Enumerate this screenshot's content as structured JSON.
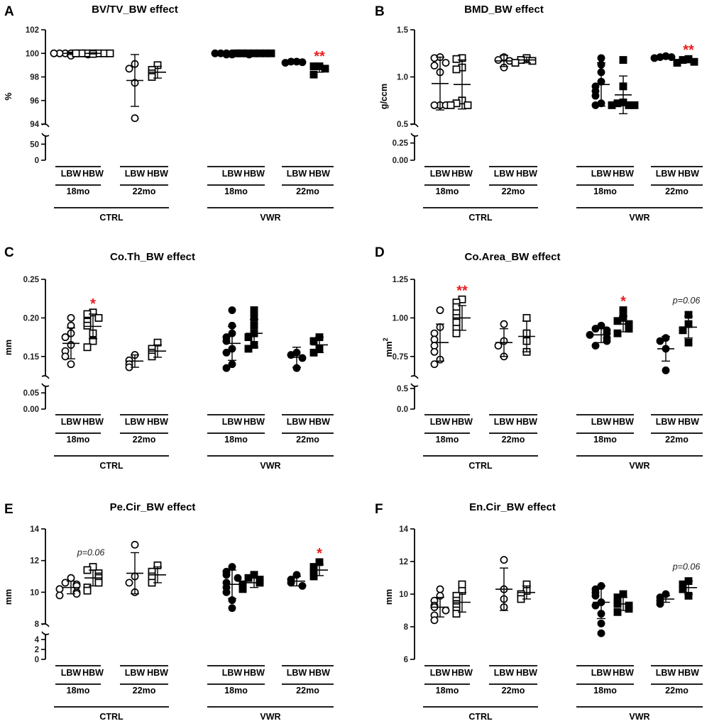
{
  "figure": {
    "group_labels": {
      "weights": [
        "LBW",
        "HBW"
      ],
      "ages": [
        "18mo",
        "22mo"
      ],
      "conditions": [
        "CTRL",
        "VWR"
      ]
    },
    "open_fill_condition": "CTRL",
    "filled_condition": "VWR",
    "marker_color": "#000000",
    "annotation_color": "#ee1c1c"
  },
  "chart_data": [
    {
      "type": "scatter",
      "panel": "A",
      "title": "BV/TV_BW effect",
      "ylabel": "%",
      "ylim": [
        0,
        102
      ],
      "axis_break": true,
      "upper_range": [
        94,
        102
      ],
      "lower_range": [
        0,
        75
      ],
      "upper_ticks": [
        "94",
        "96",
        "98",
        "100",
        "102"
      ],
      "lower_ticks": [
        "0",
        "50"
      ],
      "groups": [
        {
          "condition": "CTRL",
          "age": "18mo",
          "weight": "LBW",
          "mean": 100.0,
          "sd": 0.1,
          "values": [
            100.0,
            99.9,
            100.0,
            100.0,
            100.0,
            99.8,
            100.0,
            100.0
          ]
        },
        {
          "condition": "CTRL",
          "age": "18mo",
          "weight": "HBW",
          "mean": 100.0,
          "sd": 0.05,
          "values": [
            100.0,
            100.0,
            100.0,
            99.95,
            100.0,
            100.0,
            100.0,
            100.0
          ]
        },
        {
          "condition": "CTRL",
          "age": "22mo",
          "weight": "LBW",
          "mean": 97.7,
          "sd": 2.2,
          "values": [
            94.5,
            97.5,
            98.7,
            99.1
          ]
        },
        {
          "condition": "CTRL",
          "age": "22mo",
          "weight": "HBW",
          "mean": 98.4,
          "sd": 0.5,
          "values": [
            98.0,
            98.3,
            98.6,
            99.0
          ]
        },
        {
          "condition": "VWR",
          "age": "18mo",
          "weight": "LBW",
          "mean": 99.95,
          "sd": 0.05,
          "values": [
            100.0,
            99.9,
            100.0,
            100.0,
            99.9,
            100.0,
            100.0,
            100.0,
            99.9
          ]
        },
        {
          "condition": "VWR",
          "age": "18mo",
          "weight": "HBW",
          "mean": 100.0,
          "sd": 0.02,
          "values": [
            100.0,
            100.0,
            100.0,
            100.0,
            100.0,
            100.0,
            100.0
          ]
        },
        {
          "condition": "VWR",
          "age": "22mo",
          "weight": "LBW",
          "mean": 99.25,
          "sd": 0.05,
          "values": [
            99.2,
            99.3,
            99.25,
            99.3
          ]
        },
        {
          "condition": "VWR",
          "age": "22mo",
          "weight": "HBW",
          "mean": 98.7,
          "sd": 0.3,
          "values": [
            98.2,
            98.7,
            98.9,
            98.9
          ]
        }
      ],
      "annotations": [
        {
          "text": "**",
          "condition": "VWR",
          "age": "22mo",
          "weight": "HBW",
          "kind": "sig"
        }
      ]
    },
    {
      "type": "scatter",
      "panel": "B",
      "title": "BMD_BW effect",
      "ylabel": "g/ccm",
      "ylim": [
        0,
        1.5
      ],
      "axis_break": true,
      "upper_range": [
        0.5,
        1.5
      ],
      "lower_range": [
        0,
        0.35
      ],
      "upper_ticks": [
        "0.5",
        "1.0",
        "1.5"
      ],
      "lower_ticks": [
        "0.00",
        "0.25"
      ],
      "groups": [
        {
          "condition": "CTRL",
          "age": "18mo",
          "weight": "LBW",
          "mean": 0.93,
          "sd": 0.28,
          "values": [
            0.7,
            0.7,
            0.7,
            1.05,
            1.12,
            1.15,
            1.2,
            1.21
          ]
        },
        {
          "condition": "CTRL",
          "age": "18mo",
          "weight": "HBW",
          "mean": 0.92,
          "sd": 0.26,
          "values": [
            0.7,
            0.7,
            0.72,
            0.75,
            1.08,
            1.1,
            1.19,
            1.2
          ]
        },
        {
          "condition": "CTRL",
          "age": "22mo",
          "weight": "LBW",
          "mean": 1.17,
          "sd": 0.06,
          "values": [
            1.1,
            1.17,
            1.18,
            1.21
          ]
        },
        {
          "condition": "CTRL",
          "age": "22mo",
          "weight": "HBW",
          "mean": 1.18,
          "sd": 0.03,
          "values": [
            1.15,
            1.17,
            1.18,
            1.2
          ]
        },
        {
          "condition": "VWR",
          "age": "18mo",
          "weight": "LBW",
          "mean": 0.92,
          "sd": 0.23,
          "values": [
            0.7,
            0.72,
            0.8,
            0.9,
            0.95,
            1.05,
            1.13,
            1.2,
            0.85
          ]
        },
        {
          "condition": "VWR",
          "age": "18mo",
          "weight": "HBW",
          "mean": 0.81,
          "sd": 0.2,
          "values": [
            0.7,
            0.7,
            0.7,
            0.72,
            0.73,
            0.9,
            1.18
          ]
        },
        {
          "condition": "VWR",
          "age": "22mo",
          "weight": "LBW",
          "mean": 1.21,
          "sd": 0.01,
          "values": [
            1.2,
            1.21,
            1.21,
            1.22
          ]
        },
        {
          "condition": "VWR",
          "age": "22mo",
          "weight": "HBW",
          "mean": 1.17,
          "sd": 0.02,
          "values": [
            1.15,
            1.16,
            1.18,
            1.19
          ]
        }
      ],
      "annotations": [
        {
          "text": "**",
          "condition": "VWR",
          "age": "22mo",
          "weight": "HBW",
          "kind": "sig"
        }
      ]
    },
    {
      "type": "scatter",
      "panel": "C",
      "title": "Co.Th_BW effect",
      "ylabel": "mm",
      "ylim": [
        0,
        0.25
      ],
      "axis_break": true,
      "upper_range": [
        0.125,
        0.25
      ],
      "lower_range": [
        0,
        0.07
      ],
      "upper_ticks": [
        "0.15",
        "0.20",
        "0.25"
      ],
      "lower_ticks": [
        "0.00",
        "0.05"
      ],
      "groups": [
        {
          "condition": "CTRL",
          "age": "18mo",
          "weight": "LBW",
          "mean": 0.167,
          "sd": 0.02,
          "values": [
            0.14,
            0.15,
            0.157,
            0.165,
            0.175,
            0.18,
            0.19,
            0.2
          ]
        },
        {
          "condition": "CTRL",
          "age": "18mo",
          "weight": "HBW",
          "mean": 0.189,
          "sd": 0.016,
          "values": [
            0.162,
            0.17,
            0.18,
            0.19,
            0.195,
            0.2,
            0.205,
            0.207
          ]
        },
        {
          "condition": "CTRL",
          "age": "22mo",
          "weight": "LBW",
          "mean": 0.144,
          "sd": 0.008,
          "values": [
            0.136,
            0.14,
            0.145,
            0.152
          ]
        },
        {
          "condition": "CTRL",
          "age": "22mo",
          "weight": "HBW",
          "mean": 0.157,
          "sd": 0.008,
          "values": [
            0.15,
            0.155,
            0.16,
            0.168
          ]
        },
        {
          "condition": "VWR",
          "age": "18mo",
          "weight": "LBW",
          "mean": 0.167,
          "sd": 0.022,
          "values": [
            0.135,
            0.14,
            0.155,
            0.16,
            0.17,
            0.175,
            0.18,
            0.19,
            0.21
          ]
        },
        {
          "condition": "VWR",
          "age": "18mo",
          "weight": "HBW",
          "mean": 0.18,
          "sd": 0.018,
          "values": [
            0.16,
            0.165,
            0.175,
            0.18,
            0.19,
            0.2,
            0.21
          ]
        },
        {
          "condition": "VWR",
          "age": "22mo",
          "weight": "LBW",
          "mean": 0.149,
          "sd": 0.013,
          "values": [
            0.135,
            0.148,
            0.152,
            0.155
          ]
        },
        {
          "condition": "VWR",
          "age": "22mo",
          "weight": "HBW",
          "mean": 0.165,
          "sd": 0.01,
          "values": [
            0.155,
            0.16,
            0.17,
            0.175
          ]
        }
      ],
      "annotations": [
        {
          "text": "*",
          "condition": "CTRL",
          "age": "18mo",
          "weight": "HBW",
          "kind": "sig"
        }
      ]
    },
    {
      "type": "scatter",
      "panel": "D",
      "title": "Co.Area_BW effect",
      "ylabel": "mm",
      "ylabel_superscript": "2",
      "ylim": [
        0,
        1.25
      ],
      "axis_break": true,
      "upper_range": [
        0.625,
        1.25
      ],
      "lower_range": [
        0,
        0.55
      ],
      "upper_ticks": [
        "0.75",
        "1.00",
        "1.25"
      ],
      "lower_ticks": [
        "0.0",
        "0.5"
      ],
      "groups": [
        {
          "condition": "CTRL",
          "age": "18mo",
          "weight": "LBW",
          "mean": 0.84,
          "sd": 0.12,
          "values": [
            0.7,
            0.73,
            0.78,
            0.82,
            0.86,
            0.9,
            0.94,
            1.05
          ]
        },
        {
          "condition": "CTRL",
          "age": "18mo",
          "weight": "HBW",
          "mean": 1.0,
          "sd": 0.08,
          "values": [
            0.9,
            0.93,
            0.97,
            1.0,
            1.03,
            1.07,
            1.1,
            1.12
          ]
        },
        {
          "condition": "CTRL",
          "age": "22mo",
          "weight": "LBW",
          "mean": 0.84,
          "sd": 0.09,
          "values": [
            0.75,
            0.82,
            0.85,
            0.96
          ]
        },
        {
          "condition": "CTRL",
          "age": "22mo",
          "weight": "HBW",
          "mean": 0.88,
          "sd": 0.1,
          "values": [
            0.78,
            0.85,
            0.9,
            1.0
          ]
        },
        {
          "condition": "VWR",
          "age": "18mo",
          "weight": "LBW",
          "mean": 0.89,
          "sd": 0.05,
          "values": [
            0.82,
            0.85,
            0.87,
            0.89,
            0.9,
            0.92,
            0.93,
            0.95
          ]
        },
        {
          "condition": "VWR",
          "age": "18mo",
          "weight": "HBW",
          "mean": 0.96,
          "sd": 0.05,
          "values": [
            0.9,
            0.93,
            0.95,
            0.96,
            0.98,
            1.0,
            1.05
          ]
        },
        {
          "condition": "VWR",
          "age": "22mo",
          "weight": "LBW",
          "mean": 0.8,
          "sd": 0.08,
          "values": [
            0.66,
            0.8,
            0.85,
            0.87
          ]
        },
        {
          "condition": "VWR",
          "age": "22mo",
          "weight": "HBW",
          "mean": 0.94,
          "sd": 0.07,
          "values": [
            0.84,
            0.92,
            0.96,
            1.02
          ]
        }
      ],
      "annotations": [
        {
          "text": "**",
          "condition": "CTRL",
          "age": "18mo",
          "weight": "HBW",
          "kind": "sig"
        },
        {
          "text": "*",
          "condition": "VWR",
          "age": "18mo",
          "weight": "HBW",
          "kind": "sig"
        },
        {
          "text": "p=0.06",
          "condition": "VWR",
          "age": "22mo",
          "weight": "HBW",
          "kind": "pvalue"
        }
      ]
    },
    {
      "type": "scatter",
      "panel": "E",
      "title": "Pe.Cir_BW effect",
      "ylabel": "mm",
      "ylim": [
        0,
        14
      ],
      "axis_break": true,
      "upper_range": [
        8,
        14
      ],
      "lower_range": [
        0,
        5
      ],
      "upper_ticks": [
        "8",
        "10",
        "12",
        "14"
      ],
      "lower_ticks": [
        "0",
        "2",
        "4"
      ],
      "groups": [
        {
          "condition": "CTRL",
          "age": "18mo",
          "weight": "LBW",
          "mean": 10.3,
          "sd": 0.4,
          "values": [
            9.8,
            9.9,
            10.0,
            10.2,
            10.4,
            10.5,
            10.6,
            10.9
          ]
        },
        {
          "condition": "CTRL",
          "age": "18mo",
          "weight": "HBW",
          "mean": 10.9,
          "sd": 0.5,
          "values": [
            10.1,
            10.3,
            10.6,
            10.9,
            11.0,
            11.2,
            11.4,
            11.6
          ]
        },
        {
          "condition": "CTRL",
          "age": "22mo",
          "weight": "LBW",
          "mean": 11.2,
          "sd": 1.3,
          "values": [
            10.0,
            10.6,
            11.0,
            13.0
          ]
        },
        {
          "condition": "CTRL",
          "age": "22mo",
          "weight": "HBW",
          "mean": 11.1,
          "sd": 0.5,
          "values": [
            10.6,
            11.0,
            11.3,
            11.7
          ]
        },
        {
          "condition": "VWR",
          "age": "18mo",
          "weight": "LBW",
          "mean": 10.5,
          "sd": 0.9,
          "values": [
            9.0,
            9.5,
            10.0,
            10.3,
            10.6,
            10.9,
            11.1,
            11.3,
            11.6
          ]
        },
        {
          "condition": "VWR",
          "age": "18mo",
          "weight": "HBW",
          "mean": 10.6,
          "sd": 0.3,
          "values": [
            10.2,
            10.4,
            10.5,
            10.6,
            10.8,
            10.9,
            11.1
          ]
        },
        {
          "condition": "VWR",
          "age": "22mo",
          "weight": "LBW",
          "mean": 10.7,
          "sd": 0.3,
          "values": [
            10.4,
            10.6,
            10.8,
            11.1
          ]
        },
        {
          "condition": "VWR",
          "age": "22mo",
          "weight": "HBW",
          "mean": 11.4,
          "sd": 0.35,
          "values": [
            11.0,
            11.3,
            11.6,
            11.9
          ]
        }
      ],
      "annotations": [
        {
          "text": "p=0.06",
          "condition": "CTRL",
          "age": "18mo",
          "weight": "HBW",
          "kind": "pvalue"
        },
        {
          "text": "*",
          "condition": "VWR",
          "age": "22mo",
          "weight": "HBW",
          "kind": "sig"
        }
      ]
    },
    {
      "type": "scatter",
      "panel": "F",
      "title": "En.Cir_BW effect",
      "ylabel": "mm",
      "ylim": [
        6,
        14
      ],
      "axis_break": false,
      "ticks": [
        "6",
        "8",
        "10",
        "12",
        "14"
      ],
      "groups": [
        {
          "condition": "CTRL",
          "age": "18mo",
          "weight": "LBW",
          "mean": 9.2,
          "sd": 0.6,
          "values": [
            8.4,
            8.7,
            9.0,
            9.2,
            9.3,
            9.6,
            9.9,
            10.3
          ]
        },
        {
          "condition": "CTRL",
          "age": "18mo",
          "weight": "HBW",
          "mean": 9.5,
          "sd": 0.6,
          "values": [
            8.8,
            9.0,
            9.2,
            9.4,
            9.6,
            9.9,
            10.2,
            10.6
          ]
        },
        {
          "condition": "CTRL",
          "age": "22mo",
          "weight": "LBW",
          "mean": 10.3,
          "sd": 1.3,
          "values": [
            9.2,
            9.7,
            10.3,
            12.1
          ]
        },
        {
          "condition": "CTRL",
          "age": "22mo",
          "weight": "HBW",
          "mean": 10.1,
          "sd": 0.4,
          "values": [
            9.7,
            10.0,
            10.2,
            10.6
          ]
        },
        {
          "condition": "VWR",
          "age": "18mo",
          "weight": "LBW",
          "mean": 9.5,
          "sd": 1.0,
          "values": [
            7.6,
            8.2,
            8.8,
            9.3,
            9.5,
            9.9,
            10.1,
            10.3,
            10.5
          ]
        },
        {
          "condition": "VWR",
          "age": "18mo",
          "weight": "HBW",
          "mean": 9.4,
          "sd": 0.4,
          "values": [
            8.9,
            9.1,
            9.3,
            9.4,
            9.5,
            9.8,
            10.0
          ]
        },
        {
          "condition": "VWR",
          "age": "22mo",
          "weight": "LBW",
          "mean": 9.7,
          "sd": 0.2,
          "values": [
            9.4,
            9.6,
            9.8,
            10.0
          ]
        },
        {
          "condition": "VWR",
          "age": "22mo",
          "weight": "HBW",
          "mean": 10.4,
          "sd": 0.4,
          "values": [
            9.9,
            10.3,
            10.6,
            10.8
          ]
        }
      ],
      "annotations": [
        {
          "text": "p=0.06",
          "condition": "VWR",
          "age": "22mo",
          "weight": "HBW",
          "kind": "pvalue"
        }
      ]
    }
  ]
}
